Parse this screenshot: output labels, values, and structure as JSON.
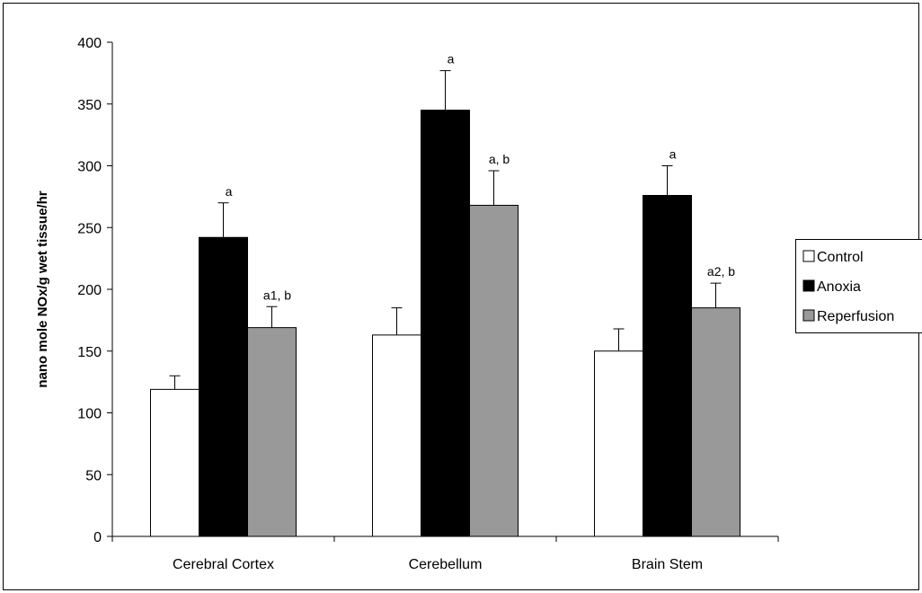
{
  "chart_data": {
    "type": "bar",
    "title": "",
    "xlabel": "",
    "ylabel": "nano mole NOx/g wet tissue/hr",
    "ylim": [
      0,
      400
    ],
    "yticks": [
      0,
      50,
      100,
      150,
      200,
      250,
      300,
      350,
      400
    ],
    "categories": [
      "Cerebral Cortex",
      "Cerebellum",
      "Brain Stem"
    ],
    "series": [
      {
        "name": "Control",
        "values": [
          119,
          163,
          150
        ],
        "errors": [
          11,
          22,
          18
        ],
        "color": "#ffffff",
        "annotations": [
          "",
          "",
          ""
        ]
      },
      {
        "name": "Anoxia",
        "values": [
          242,
          345,
          276
        ],
        "errors": [
          28,
          32,
          24
        ],
        "color": "#000000",
        "annotations": [
          "a",
          "a",
          "a"
        ]
      },
      {
        "name": "Reperfusion",
        "values": [
          169,
          268,
          185
        ],
        "errors": [
          17,
          28,
          20
        ],
        "color": "#999999",
        "annotations": [
          "a1, b",
          "a, b",
          "a2, b"
        ]
      }
    ],
    "legend_position": "right",
    "grid": false
  }
}
